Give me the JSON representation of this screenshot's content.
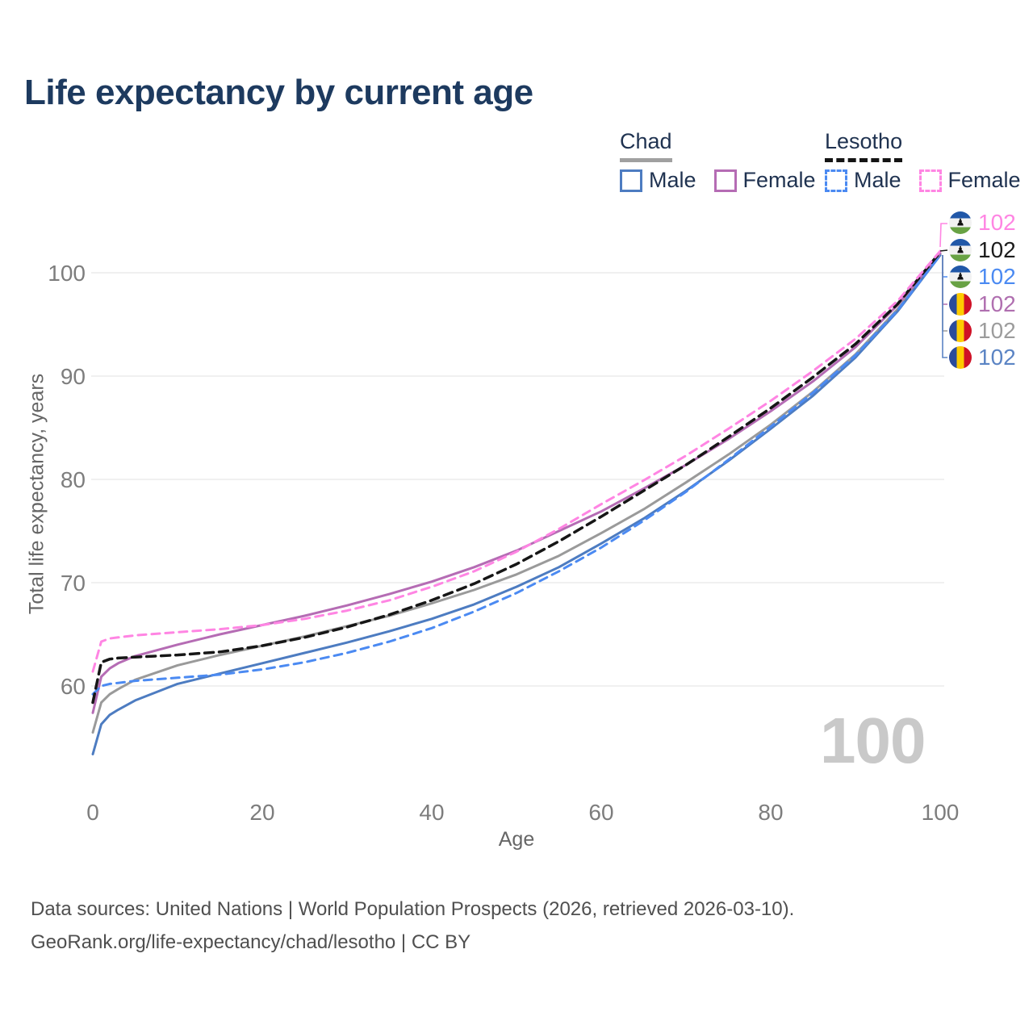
{
  "title": "Life expectancy by current age",
  "legend": {
    "groups": [
      {
        "country": "Chad",
        "line_style": "solid",
        "line_color": "#a0a0a0",
        "items": [
          {
            "label": "Male",
            "color": "#4d7cc1",
            "style": "solid"
          },
          {
            "label": "Female",
            "color": "#b56cb4",
            "style": "solid"
          }
        ]
      },
      {
        "country": "Lesotho",
        "line_style": "dashed",
        "line_color": "#141414",
        "items": [
          {
            "label": "Male",
            "color": "#4b8af2",
            "style": "dashed"
          },
          {
            "label": "Female",
            "color": "#ff85e3",
            "style": "dashed"
          }
        ]
      }
    ]
  },
  "chart_data": {
    "type": "line",
    "xlabel": "Age",
    "ylabel": "Total life expectancy, years",
    "xticks": [
      0,
      20,
      40,
      60,
      80,
      100
    ],
    "yticks": [
      60,
      70,
      80,
      90,
      100
    ],
    "xlim": [
      0,
      100
    ],
    "ylim": [
      53,
      104
    ],
    "grid": "horizontal",
    "legend_position": "top-right",
    "ages": [
      0,
      1,
      2,
      3,
      5,
      10,
      15,
      20,
      25,
      30,
      35,
      40,
      45,
      50,
      55,
      60,
      65,
      70,
      75,
      80,
      85,
      90,
      95,
      100
    ],
    "series": [
      {
        "id": "chad-total",
        "name": "Chad — Both sexes",
        "color": "#9a9a9a",
        "dash": null,
        "width": 3,
        "values": [
          55.5,
          58.4,
          59.2,
          59.7,
          60.6,
          62.0,
          63.0,
          63.9,
          64.8,
          65.8,
          66.8,
          68.0,
          69.3,
          70.8,
          72.6,
          74.8,
          77.1,
          79.7,
          82.4,
          85.3,
          88.5,
          92.1,
          96.5,
          101.8
        ],
        "end_label": "102"
      },
      {
        "id": "chad-male",
        "name": "Chad — Male",
        "color": "#4d7cc1",
        "dash": null,
        "width": 3,
        "values": [
          53.4,
          56.3,
          57.2,
          57.7,
          58.6,
          60.2,
          61.2,
          62.2,
          63.2,
          64.2,
          65.3,
          66.5,
          67.9,
          69.6,
          71.5,
          73.8,
          76.2,
          78.9,
          81.8,
          84.9,
          88.1,
          91.8,
          96.3,
          101.7
        ],
        "end_label": "102"
      },
      {
        "id": "chad-female",
        "name": "Chad — Female",
        "color": "#b56cb4",
        "dash": null,
        "width": 3,
        "values": [
          57.4,
          60.9,
          61.7,
          62.2,
          62.9,
          64.0,
          65.0,
          65.9,
          66.8,
          67.8,
          68.9,
          70.1,
          71.5,
          73.1,
          75.0,
          76.9,
          79.1,
          81.4,
          83.9,
          86.6,
          89.5,
          92.8,
          96.9,
          101.9
        ],
        "end_label": "102"
      },
      {
        "id": "lesotho-male",
        "name": "Lesotho — Male",
        "color": "#4b8af2",
        "dash": "10 7",
        "width": 3,
        "values": [
          59.2,
          60.0,
          60.2,
          60.3,
          60.5,
          60.8,
          61.1,
          61.6,
          62.3,
          63.2,
          64.3,
          65.6,
          67.2,
          69.0,
          71.1,
          73.4,
          76.0,
          78.8,
          81.9,
          85.1,
          88.4,
          92.0,
          96.4,
          101.7
        ],
        "end_label": "102"
      },
      {
        "id": "lesotho-total",
        "name": "Lesotho — Both sexes",
        "color": "#161616",
        "dash": "11 7",
        "width": 3.5,
        "values": [
          58.4,
          62.3,
          62.6,
          62.7,
          62.8,
          63.0,
          63.3,
          63.9,
          64.7,
          65.7,
          66.9,
          68.3,
          69.9,
          71.8,
          74.0,
          76.4,
          78.9,
          81.4,
          84.1,
          86.9,
          89.9,
          93.1,
          97.0,
          102.0
        ],
        "end_label": "102"
      },
      {
        "id": "lesotho-female",
        "name": "Lesotho — Female",
        "color": "#ff85e3",
        "dash": "10 7",
        "width": 3,
        "values": [
          61.4,
          64.3,
          64.6,
          64.7,
          64.9,
          65.2,
          65.5,
          65.9,
          66.5,
          67.3,
          68.3,
          69.6,
          71.1,
          73.0,
          75.2,
          77.6,
          79.9,
          82.3,
          84.9,
          87.6,
          90.5,
          93.6,
          97.3,
          102.1
        ],
        "end_label": "102"
      }
    ],
    "end_labels": [
      {
        "series": "lesotho-female",
        "text": "102",
        "color": "#ff85e3",
        "flag": "lesotho"
      },
      {
        "series": "lesotho-total",
        "text": "102",
        "color": "#1c1c1c",
        "flag": "lesotho"
      },
      {
        "series": "lesotho-male",
        "text": "102",
        "color": "#4b8af2",
        "flag": "lesotho"
      },
      {
        "series": "chad-female",
        "text": "102",
        "color": "#b06fb0",
        "flag": "chad"
      },
      {
        "series": "chad-total",
        "text": "102",
        "color": "#9c9c9c",
        "flag": "chad"
      },
      {
        "series": "chad-male",
        "text": "102",
        "color": "#5b84c4",
        "flag": "chad"
      }
    ],
    "age_counter": "100"
  },
  "footer": {
    "line1": "Data sources: United Nations | World Population Prospects (2026, retrieved 2026-03-10).",
    "line2": "GeoRank.org/life-expectancy/chad/lesotho | CC BY"
  },
  "colors": {
    "title": "#1d3a5f",
    "axis_text": "#7d7d7d",
    "grid": "#ebebeb",
    "legend_text": "#1f3250",
    "watermark": "#c9c9c9",
    "footer_text": "#4f4f4f"
  }
}
